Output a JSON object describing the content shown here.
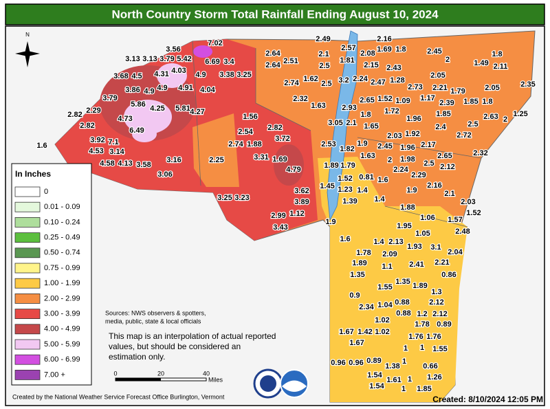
{
  "title": "North Country Storm Total Rainfall Ending August 10, 2024",
  "compass": "N",
  "legend": {
    "title": "In Inches",
    "items": [
      {
        "label": "0",
        "color": "#ffffff"
      },
      {
        "label": "0.01 - 0.09",
        "color": "#e4f8dc"
      },
      {
        "label": "0.10 - 0.24",
        "color": "#aede9c"
      },
      {
        "label": "0.25 - 0.49",
        "color": "#5cbf3e"
      },
      {
        "label": "0.50 - 0.74",
        "color": "#5a9752"
      },
      {
        "label": "0.75 - 0.99",
        "color": "#fff48a"
      },
      {
        "label": "1.00 - 1.99",
        "color": "#fdca45"
      },
      {
        "label": "2.00 - 2.99",
        "color": "#f58e43"
      },
      {
        "label": "3.00 - 3.99",
        "color": "#e64a46"
      },
      {
        "label": "4.00 - 4.99",
        "color": "#c5484a"
      },
      {
        "label": "5.00 - 5.99",
        "color": "#f2c8f2"
      },
      {
        "label": "6.00 - 6.99",
        "color": "#d24fe0"
      },
      {
        "label": "7.00 +",
        "color": "#9b42b1"
      }
    ]
  },
  "stations": [
    "7.02",
    "3.56",
    "3.13",
    "3.13",
    "3.79",
    "5.42",
    "6.69",
    "3.4",
    "3.68",
    "4.5",
    "4.31",
    "4.03",
    "4.9",
    "3.38",
    "3.25",
    "3.86",
    "4.9",
    "4.9",
    "4.91",
    "4.04",
    "3.79",
    "5.86",
    "4.25",
    "5.81",
    "4.27",
    "2.82",
    "2.29",
    "4.73",
    "2.82",
    "6.49",
    "3.92",
    "7.1",
    "4.53",
    "3.14",
    "1.6",
    "4.58",
    "4.13",
    "3.58",
    "3.16",
    "3.06",
    "2.25",
    "1.56",
    "2.54",
    "2.82",
    "2.74",
    "1.88",
    "3.72",
    "3.31",
    "1.69",
    "4.79",
    "3.62",
    "3.89",
    "3.25",
    "3.23",
    "2.99",
    "1.12",
    "3.43",
    "2.64",
    "2.64",
    "2.51",
    "2.74",
    "1.62",
    "2.32",
    "2.49",
    "2.1",
    "2.5",
    "2.57",
    "1.81",
    "2.08",
    "2.16",
    "1.69",
    "1.8",
    "2.15",
    "2.43",
    "3.2",
    "2.24",
    "2.47",
    "1.28",
    "2.5",
    "1.63",
    "2.93",
    "2.65",
    "1.52",
    "1.09",
    "1.72",
    "3.05",
    "2.1",
    "1.8",
    "1.65",
    "1.96",
    "2.03",
    "1.92",
    "2.53",
    "1.82",
    "1.9",
    "1.63",
    "2.45",
    "1.96",
    "2.17",
    "2.45",
    "2",
    "1.8",
    "1.49",
    "2.11",
    "2.05",
    "2.73",
    "2.21",
    "1.79",
    "2.05",
    "2.35",
    "1.17",
    "2.39",
    "1.85",
    "1.8",
    "1.85",
    "2.63",
    "2",
    "1.25",
    "2.4",
    "2.5",
    "2.72",
    "1.89",
    "1.79",
    "2",
    "1.98",
    "2.24",
    "2.5",
    "2.12",
    "2.65",
    "2.32",
    "1.52",
    "0.81",
    "1.6",
    "2.29",
    "1.45",
    "1.23",
    "1.4",
    "1.9",
    "2.16",
    "2.1",
    "1.39",
    "1.4",
    "1.88",
    "2.03",
    "1.52",
    "1.06",
    "1.57",
    "1.9",
    "1.95",
    "2.48",
    "1.6",
    "1.4",
    "2.13",
    "1.93",
    "3.1",
    "1.05",
    "2.04",
    "1.78",
    "2.09",
    "1.89",
    "1.1",
    "2.41",
    "2.21",
    "0.86",
    "1.35",
    "1.55",
    "1.35",
    "1.89",
    "1.3",
    "0.9",
    "0.88",
    "2.12",
    "2.34",
    "1.04",
    "0.88",
    "1.2",
    "2.12",
    "1.02",
    "1.78",
    "0.89",
    "1.67",
    "1.42",
    "1.02",
    "1.76",
    "1.76",
    "1.67",
    "1.55",
    "1",
    "1",
    "0.96",
    "0.96",
    "0.89",
    "1.38",
    "1",
    "0.66",
    "1.54",
    "1.61",
    "1",
    "1.26",
    "1.54",
    "1",
    "1.85"
  ],
  "sources": [
    "Sources: NWS observers & spotters,",
    "media, public, state & local officials"
  ],
  "note": [
    "This map is an interpolation of actual reported",
    "values, but should be considered an",
    "estimation only."
  ],
  "scale": {
    "ticks": [
      "0",
      "20",
      "40"
    ],
    "unit": "Miles"
  },
  "credit": "Created by the National Weather Service Forecast Office Burlington, Vermont",
  "created": "Created: 8/10/2024 12:05 PM"
}
